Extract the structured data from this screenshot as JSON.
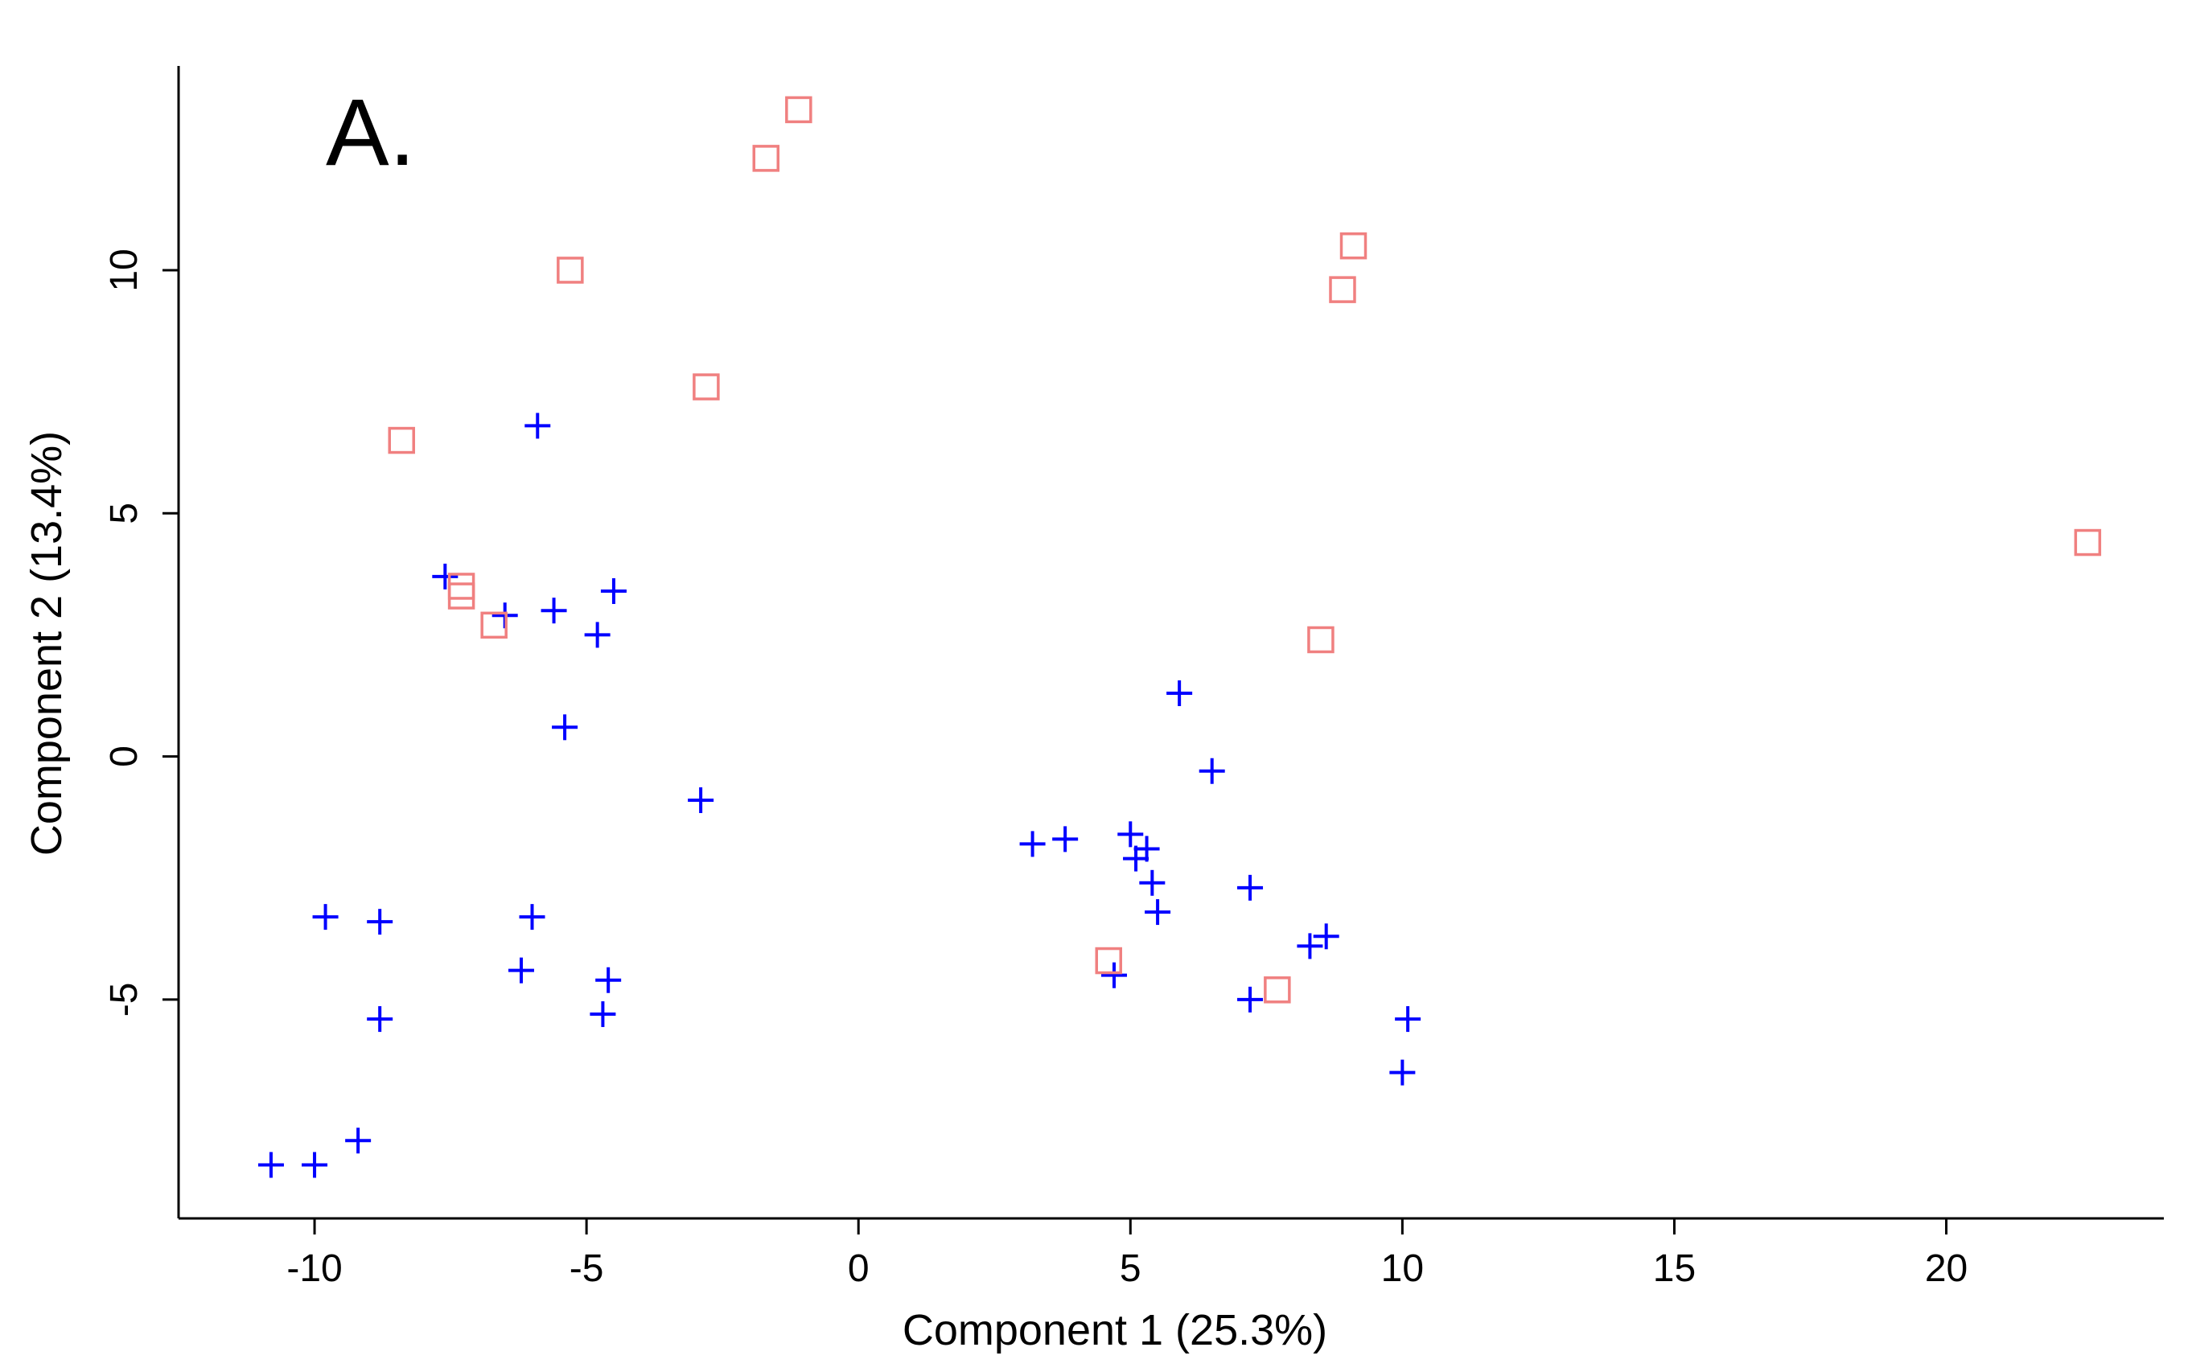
{
  "chart_data": {
    "type": "scatter",
    "panel_label": "A.",
    "xlabel": "Component 1 (25.3%)",
    "ylabel": "Component 2 (13.4%)",
    "xlim": [
      -12.5,
      24
    ],
    "ylim": [
      -9.5,
      14.2
    ],
    "x_ticks": [
      -10,
      -5,
      0,
      5,
      10,
      15,
      20
    ],
    "x_tick_labels": [
      "-10",
      "-5",
      "0",
      "5",
      "10",
      "15",
      "20"
    ],
    "y_ticks": [
      -5,
      0,
      5,
      10
    ],
    "y_tick_labels": [
      "-5",
      "0",
      "5",
      "10"
    ],
    "grid": false,
    "series": [
      {
        "marker": "plus",
        "color": "#0000ff",
        "points": [
          [
            -10.8,
            -8.4
          ],
          [
            -10.0,
            -8.4
          ],
          [
            -9.2,
            -7.9
          ],
          [
            -9.8,
            -3.3
          ],
          [
            -8.8,
            -3.4
          ],
          [
            -8.8,
            -5.4
          ],
          [
            -7.6,
            3.7
          ],
          [
            -6.5,
            2.9
          ],
          [
            -5.6,
            3.0
          ],
          [
            -4.8,
            2.5
          ],
          [
            -4.5,
            3.4
          ],
          [
            -5.4,
            0.6
          ],
          [
            -5.9,
            6.8
          ],
          [
            -6.0,
            -3.3
          ],
          [
            -6.2,
            -4.4
          ],
          [
            -4.6,
            -4.6
          ],
          [
            -4.7,
            -5.3
          ],
          [
            -2.9,
            -0.9
          ],
          [
            3.2,
            -1.8
          ],
          [
            3.8,
            -1.7
          ],
          [
            5.0,
            -1.6
          ],
          [
            5.1,
            -2.1
          ],
          [
            5.3,
            -1.9
          ],
          [
            5.4,
            -2.6
          ],
          [
            5.5,
            -3.2
          ],
          [
            5.9,
            1.3
          ],
          [
            6.5,
            -0.3
          ],
          [
            7.2,
            -2.7
          ],
          [
            8.3,
            -3.9
          ],
          [
            8.6,
            -3.7
          ],
          [
            7.2,
            -5.0
          ],
          [
            4.7,
            -4.5
          ],
          [
            10.1,
            -5.4
          ],
          [
            10.0,
            -6.5
          ]
        ]
      },
      {
        "marker": "square",
        "color": "#f08080",
        "points": [
          [
            -1.1,
            13.3
          ],
          [
            -1.7,
            12.3
          ],
          [
            -5.3,
            10.0
          ],
          [
            -2.8,
            7.6
          ],
          [
            -8.4,
            6.5
          ],
          [
            -7.3,
            3.5
          ],
          [
            -7.3,
            3.3
          ],
          [
            -6.7,
            2.7
          ],
          [
            9.1,
            10.5
          ],
          [
            8.9,
            9.6
          ],
          [
            8.5,
            2.4
          ],
          [
            22.6,
            4.4
          ],
          [
            4.6,
            -4.2
          ],
          [
            7.7,
            -4.8
          ]
        ]
      }
    ]
  }
}
